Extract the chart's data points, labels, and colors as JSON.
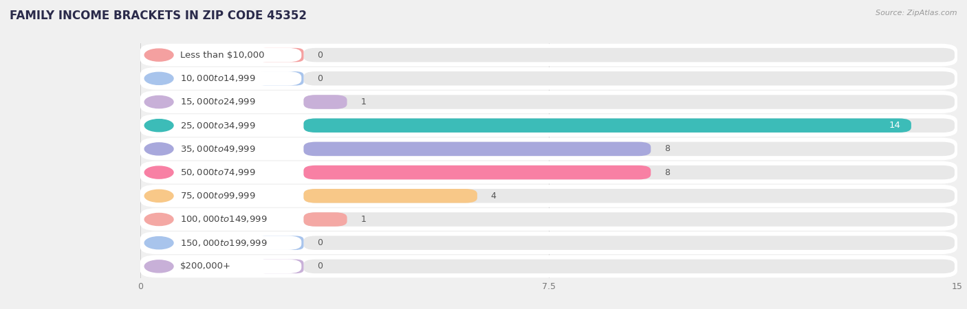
{
  "title": "FAMILY INCOME BRACKETS IN ZIP CODE 45352",
  "source": "Source: ZipAtlas.com",
  "categories": [
    "Less than $10,000",
    "$10,000 to $14,999",
    "$15,000 to $24,999",
    "$25,000 to $34,999",
    "$35,000 to $49,999",
    "$50,000 to $74,999",
    "$75,000 to $99,999",
    "$100,000 to $149,999",
    "$150,000 to $199,999",
    "$200,000+"
  ],
  "values": [
    0,
    0,
    1,
    14,
    8,
    8,
    4,
    1,
    0,
    0
  ],
  "bar_colors": [
    "#f4a0a0",
    "#a8c4ec",
    "#c8b0d8",
    "#3cbcb8",
    "#a8a8dc",
    "#f880a4",
    "#f8c888",
    "#f4a8a4",
    "#a8c4ec",
    "#c8b0d8"
  ],
  "label_bg_colors": [
    "#fce8e8",
    "#dce8f8",
    "#e8ddf0",
    "#c8eeec",
    "#dcdcf4",
    "#fcd0dc",
    "#fce8c4",
    "#fce8e8",
    "#dce8f8",
    "#e8ddf0"
  ],
  "xlim_max": 15,
  "xticks": [
    0,
    7.5,
    15
  ],
  "bg_color": "#f0f0f0",
  "row_bg_color": "#ffffff",
  "bar_track_color": "#e8e8e8",
  "title_fontsize": 12,
  "label_fontsize": 9.5,
  "value_fontsize": 9,
  "source_fontsize": 8
}
